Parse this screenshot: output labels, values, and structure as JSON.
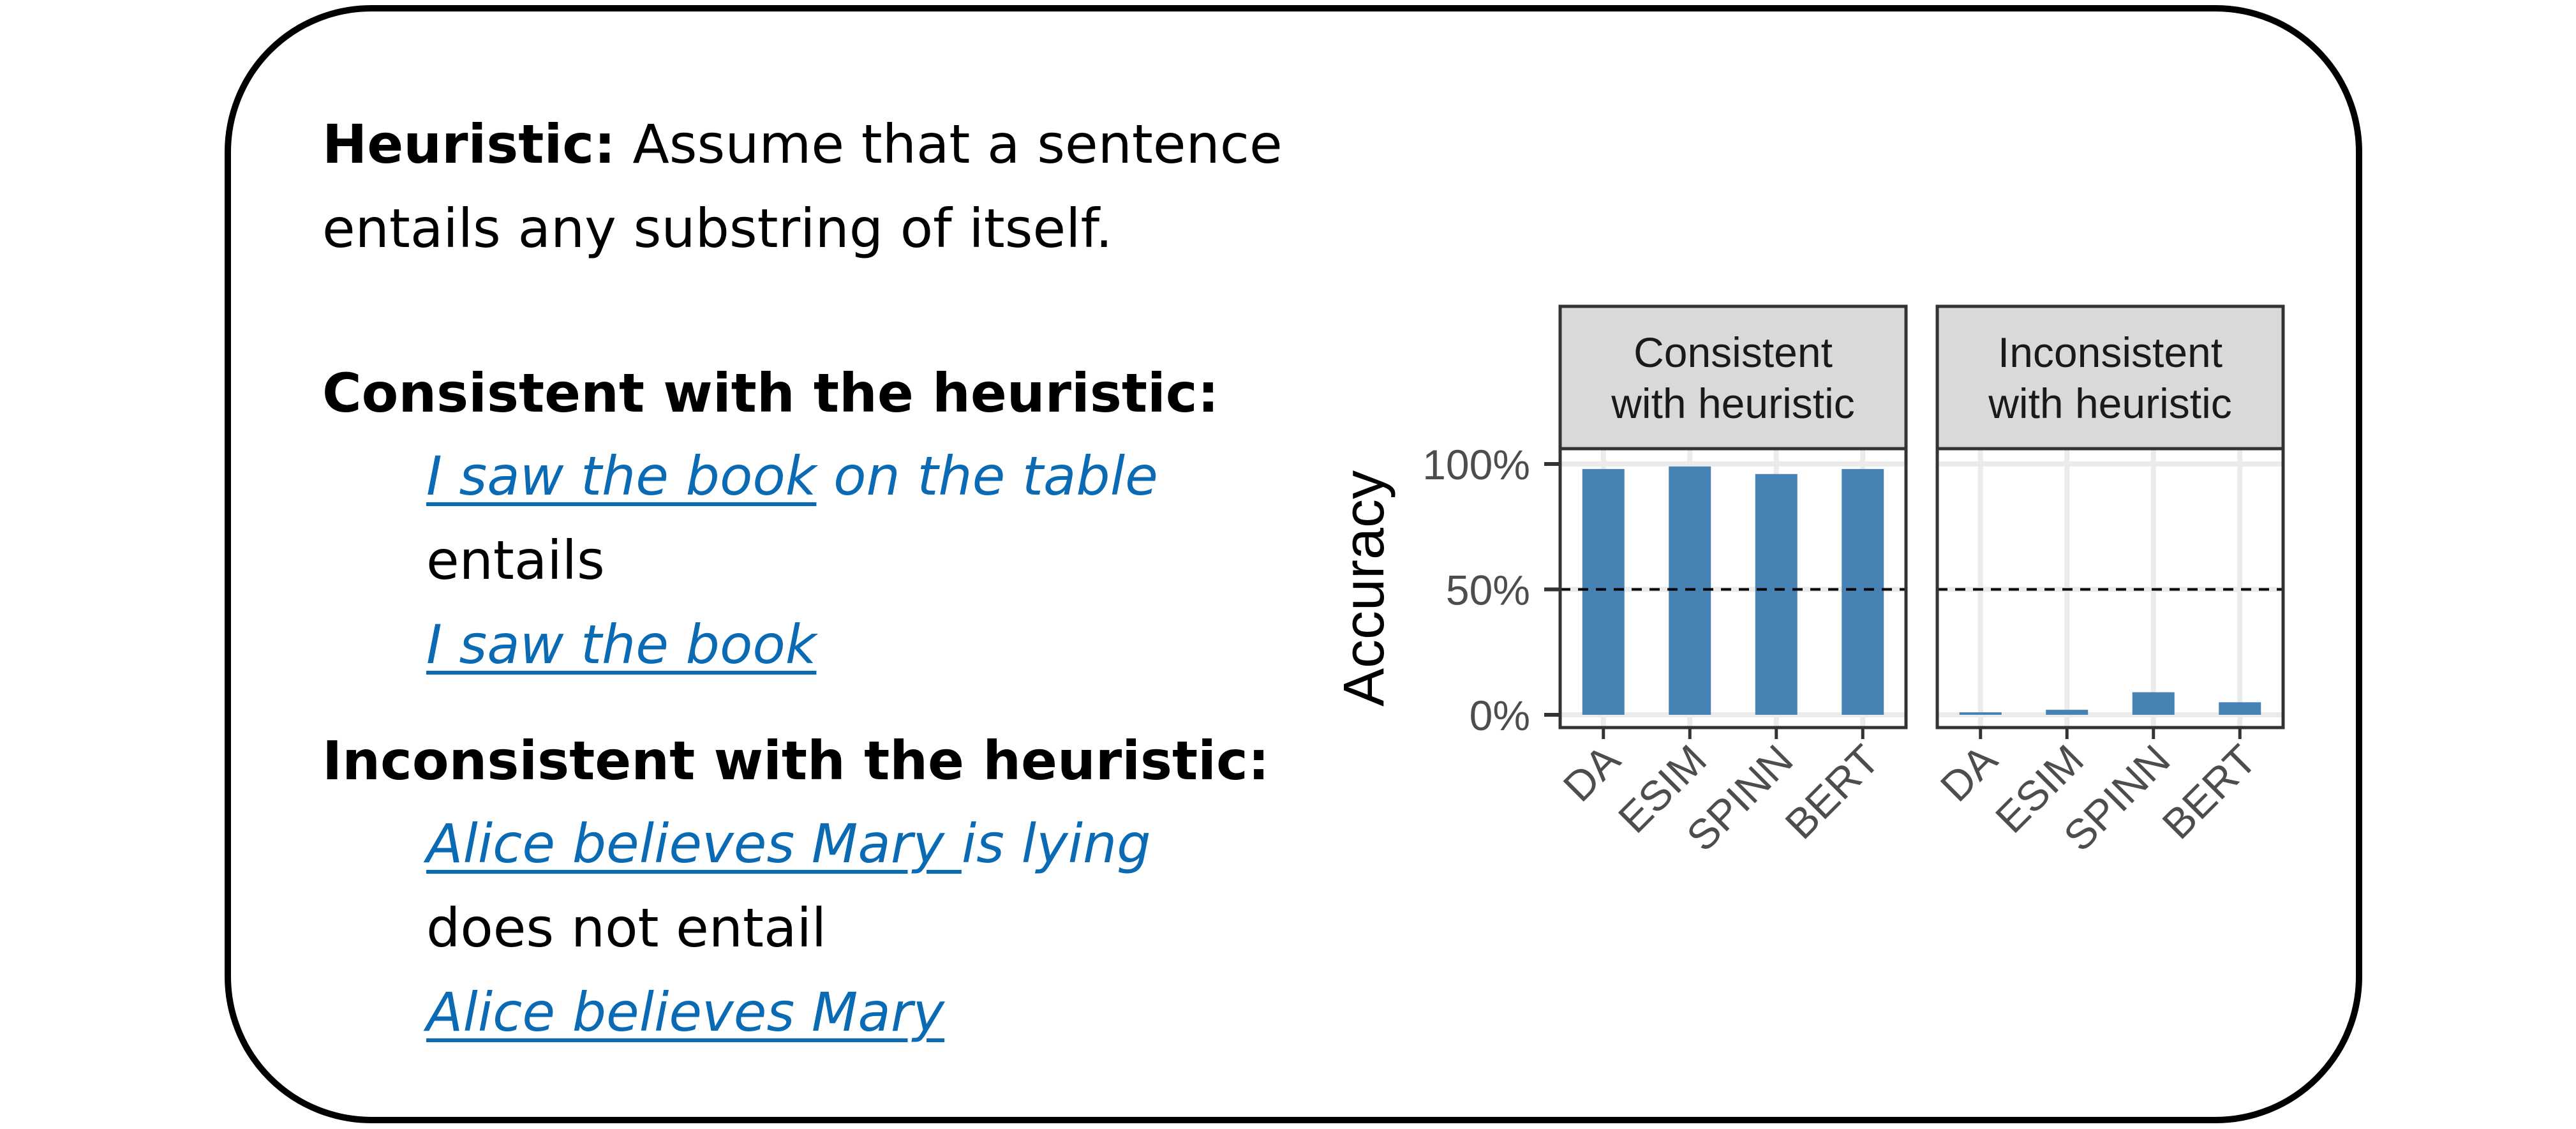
{
  "heuristic": {
    "label": "Heuristic:",
    "line1": "Assume that a sentence",
    "line2": "entails any substring of itself."
  },
  "consistent": {
    "heading": "Consistent with the heuristic:",
    "premise_underlined": "I saw the book",
    "premise_rest": " on the table",
    "relation": "entails",
    "hypothesis": "I saw the book"
  },
  "inconsistent": {
    "heading": "Inconsistent with the heuristic:",
    "premise_underlined": "Alice believes Mary ",
    "premise_rest": "is lying",
    "relation": "does not entail",
    "hypothesis": "Alice believes Mary"
  },
  "colors": {
    "text_blue": "#0a6ab3",
    "bar_fill": "#4682b4",
    "strip_fill": "#d9d9d9"
  },
  "chart_data": {
    "type": "bar",
    "ylabel": "Accuracy",
    "ylim": [
      0,
      100
    ],
    "yticks": [
      0,
      50,
      100
    ],
    "ytick_labels": [
      "0%",
      "50%",
      "100%"
    ],
    "reference_line": 50,
    "categories": [
      "DA",
      "ESIM",
      "SPINN",
      "BERT"
    ],
    "facets": [
      {
        "title_line1": "Consistent",
        "title_line2": "with heuristic",
        "values": [
          98,
          99,
          96,
          98
        ]
      },
      {
        "title_line1": "Inconsistent",
        "title_line2": "with heuristic",
        "values": [
          1,
          2,
          9,
          5
        ]
      }
    ]
  }
}
